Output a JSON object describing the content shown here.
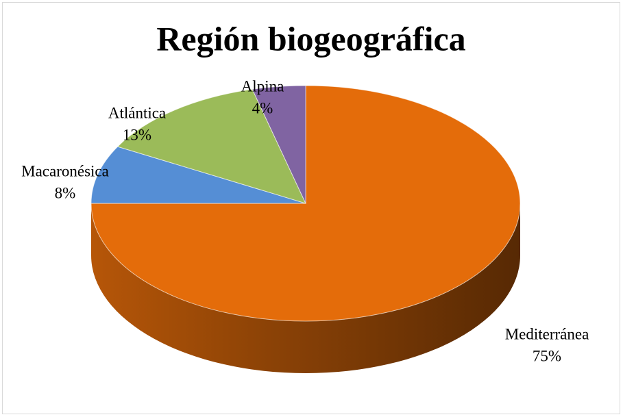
{
  "chart_data": {
    "type": "pie",
    "title": "Región biogeográfica",
    "categories": [
      "Mediterránea",
      "Macaronésica",
      "Atlántica",
      "Alpina"
    ],
    "values": [
      75,
      8,
      13,
      4
    ],
    "value_labels": [
      "75%",
      "8%",
      "13%",
      "4%"
    ],
    "colors": [
      "#e46c0a",
      "#558ed5",
      "#9bbb59",
      "#8064a2"
    ]
  }
}
